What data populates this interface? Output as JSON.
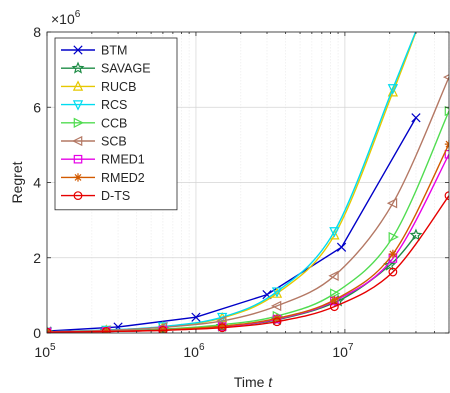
{
  "chart_data": {
    "type": "line",
    "xscale": "log",
    "xlim": [
      100000,
      50000000
    ],
    "ylim": [
      0,
      8
    ],
    "xlabel": "Time",
    "xlabel_var": "t",
    "ylabel": "Regret",
    "y_multiplier": "×10",
    "y_multiplier_exp": "6",
    "x_ticks": [
      {
        "value": 100000,
        "base": "10",
        "exp": "5"
      },
      {
        "value": 1000000,
        "base": "10",
        "exp": "6"
      },
      {
        "value": 10000000,
        "base": "10",
        "exp": "7"
      }
    ],
    "y_ticks": [
      {
        "value": 0,
        "label": "0"
      },
      {
        "value": 2,
        "label": "2"
      },
      {
        "value": 4,
        "label": "4"
      },
      {
        "value": 6,
        "label": "6"
      },
      {
        "value": 8,
        "label": "8"
      }
    ],
    "grid": true,
    "legend_position": "top-left",
    "series": [
      {
        "name": "BTM",
        "color": "#0000c8",
        "marker": "x",
        "points": [
          [
            100000,
            0.05
          ],
          [
            300000,
            0.16
          ],
          [
            1000000,
            0.42
          ],
          [
            3000000,
            1.02
          ],
          [
            9500000,
            2.28
          ],
          [
            30000000,
            5.72
          ]
        ]
      },
      {
        "name": "SAVAGE",
        "color": "#1e8c46",
        "marker": "star",
        "points": [
          [
            100000,
            0.02
          ],
          [
            250000,
            0.05
          ],
          [
            600000,
            0.1
          ],
          [
            1500000,
            0.18
          ],
          [
            3500000,
            0.35
          ],
          [
            9000000,
            0.85
          ],
          [
            20000000,
            1.8
          ],
          [
            30000000,
            2.6
          ]
        ]
      },
      {
        "name": "RUCB",
        "color": "#e6c800",
        "marker": "triangle-up",
        "points": [
          [
            100000,
            0.03
          ],
          [
            250000,
            0.07
          ],
          [
            600000,
            0.16
          ],
          [
            1500000,
            0.4
          ],
          [
            3500000,
            1.05
          ],
          [
            8500000,
            2.6
          ],
          [
            21000000,
            6.4
          ],
          [
            32000000,
            8.3
          ]
        ]
      },
      {
        "name": "RCS",
        "color": "#00dcf0",
        "marker": "triangle-down",
        "points": [
          [
            100000,
            0.03
          ],
          [
            250000,
            0.08
          ],
          [
            600000,
            0.17
          ],
          [
            1500000,
            0.42
          ],
          [
            3500000,
            1.1
          ],
          [
            8500000,
            2.7
          ],
          [
            21000000,
            6.5
          ],
          [
            32000000,
            8.3
          ]
        ]
      },
      {
        "name": "CCB",
        "color": "#50dc50",
        "marker": "triangle-right",
        "points": [
          [
            100000,
            0.02
          ],
          [
            250000,
            0.05
          ],
          [
            600000,
            0.1
          ],
          [
            1500000,
            0.22
          ],
          [
            3500000,
            0.45
          ],
          [
            8500000,
            1.05
          ],
          [
            21000000,
            2.55
          ],
          [
            50000000,
            5.9
          ]
        ]
      },
      {
        "name": "SCB",
        "color": "#b47864",
        "marker": "triangle-left",
        "points": [
          [
            100000,
            0.03
          ],
          [
            250000,
            0.07
          ],
          [
            600000,
            0.15
          ],
          [
            1500000,
            0.32
          ],
          [
            3500000,
            0.72
          ],
          [
            8500000,
            1.52
          ],
          [
            21000000,
            3.45
          ],
          [
            50000000,
            6.8
          ]
        ]
      },
      {
        "name": "RMED1",
        "color": "#e600e6",
        "marker": "square",
        "points": [
          [
            100000,
            0.02
          ],
          [
            250000,
            0.04
          ],
          [
            600000,
            0.08
          ],
          [
            1500000,
            0.17
          ],
          [
            3500000,
            0.37
          ],
          [
            8500000,
            0.85
          ],
          [
            21000000,
            1.98
          ],
          [
            50000000,
            4.75
          ]
        ]
      },
      {
        "name": "RMED2",
        "color": "#d25a00",
        "marker": "asterisk",
        "points": [
          [
            100000,
            0.02
          ],
          [
            250000,
            0.04
          ],
          [
            600000,
            0.08
          ],
          [
            1500000,
            0.18
          ],
          [
            3500000,
            0.39
          ],
          [
            8500000,
            0.88
          ],
          [
            21000000,
            2.1
          ],
          [
            50000000,
            5.02
          ]
        ]
      },
      {
        "name": "D-TS",
        "color": "#e60000",
        "marker": "circle",
        "points": [
          [
            100000,
            0.02
          ],
          [
            250000,
            0.04
          ],
          [
            600000,
            0.07
          ],
          [
            1500000,
            0.14
          ],
          [
            3500000,
            0.3
          ],
          [
            8500000,
            0.7
          ],
          [
            21000000,
            1.62
          ],
          [
            50000000,
            3.65
          ]
        ]
      }
    ]
  }
}
